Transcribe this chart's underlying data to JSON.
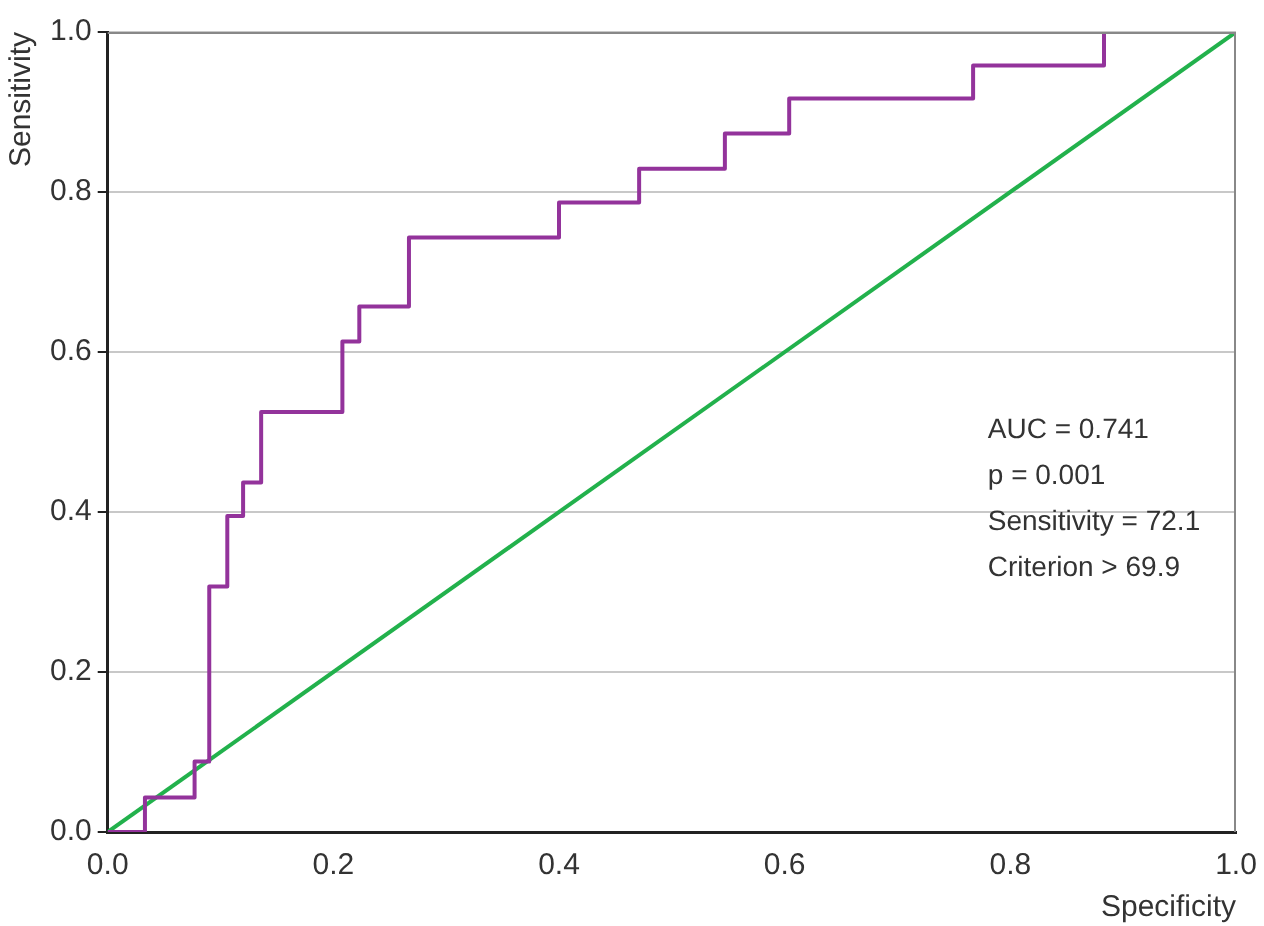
{
  "chart_data": {
    "type": "line",
    "xlabel": "Specificity",
    "ylabel": "Sensitivity",
    "xlim": [
      0,
      1
    ],
    "ylim": [
      0,
      1
    ],
    "xticks": [
      {
        "value": 0,
        "label": "0.0"
      },
      {
        "value": 0.2,
        "label": "0.2"
      },
      {
        "value": 0.4,
        "label": "0.4"
      },
      {
        "value": 0.6,
        "label": "0.6"
      },
      {
        "value": 0.8,
        "label": "0.8"
      },
      {
        "value": 1,
        "label": "1.0"
      }
    ],
    "yticks": [
      {
        "value": 0,
        "label": "0.0"
      },
      {
        "value": 0.2,
        "label": "0.2"
      },
      {
        "value": 0.4,
        "label": "0.4"
      },
      {
        "value": 0.6,
        "label": "0.6"
      },
      {
        "value": 0.8,
        "label": "0.8"
      },
      {
        "value": 1,
        "label": "1.0"
      }
    ],
    "grid": "y",
    "marker": "none",
    "legend": false,
    "series": [
      {
        "type": "step",
        "color": "#93339b",
        "x": [
          0,
          0.033,
          0.077,
          0.09,
          0.106,
          0.12,
          0.136,
          0.208,
          0.223,
          0.267,
          0.4,
          0.471,
          0.547,
          0.604,
          0.767,
          0.883,
          1
        ],
        "values": [
          0,
          0.043,
          0.088,
          0.307,
          0.395,
          0.437,
          0.525,
          0.613,
          0.657,
          0.743,
          0.787,
          0.829,
          0.873,
          0.917,
          0.958,
          1,
          1
        ]
      },
      {
        "color": "#22b14c",
        "x": [
          0,
          1
        ],
        "values": [
          0,
          1
        ]
      }
    ],
    "annotations": [
      "AUC = 0.741",
      "p = 0.001",
      "Sensitivity = 72.1",
      "Criterion > 69.9"
    ]
  }
}
